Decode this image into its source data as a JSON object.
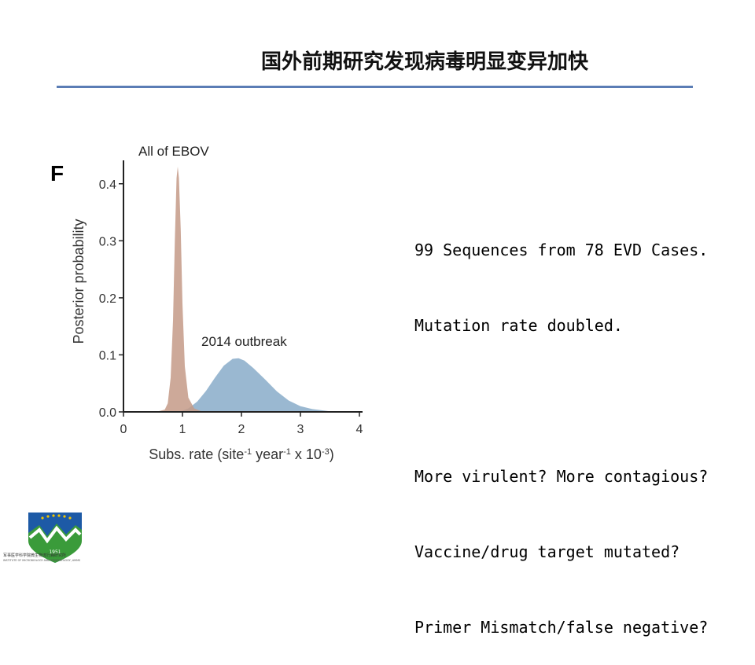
{
  "slide": {
    "title": "国外前期研究发现病毒明显变异加快"
  },
  "notes": {
    "lines": [
      "99 Sequences from 78 EVD Cases.",
      "Mutation rate doubled.",
      "",
      "More virulent? More contagious?",
      "Vaccine/drug target mutated?",
      "Primer Mismatch/false negative?"
    ]
  },
  "logo": {
    "name": "军事医学科学院微生物流行病研究所",
    "subname": "INSTITUTE OF MICROBIOLOGY AND EPIDEMIOLOGY, AMMS",
    "year": "1951"
  },
  "chart_data": {
    "type": "area",
    "panel_label": "F",
    "xlabel": "Subs. rate (site-1 year-1 x 10-3)",
    "ylabel": "Posterior probability",
    "xlim": [
      0,
      4
    ],
    "ylim": [
      0,
      0.43
    ],
    "x_ticks": [
      0,
      1,
      2,
      3,
      4
    ],
    "y_ticks": [
      0.0,
      0.1,
      0.2,
      0.3,
      0.4
    ],
    "y_tick_labels": [
      "0.0",
      "0.1",
      "0.2",
      "0.3",
      "0.4"
    ],
    "series": [
      {
        "name": "All of EBOV",
        "color": "#c49a87",
        "points": [
          [
            0.55,
            0.0
          ],
          [
            0.7,
            0.004
          ],
          [
            0.75,
            0.015
          ],
          [
            0.8,
            0.06
          ],
          [
            0.84,
            0.16
          ],
          [
            0.87,
            0.3
          ],
          [
            0.9,
            0.41
          ],
          [
            0.92,
            0.43
          ],
          [
            0.94,
            0.41
          ],
          [
            0.97,
            0.32
          ],
          [
            1.0,
            0.19
          ],
          [
            1.04,
            0.08
          ],
          [
            1.1,
            0.025
          ],
          [
            1.2,
            0.006
          ],
          [
            1.35,
            0.0
          ]
        ]
      },
      {
        "name": "2014 outbreak",
        "color": "#8fb0cc",
        "points": [
          [
            0.95,
            0.0
          ],
          [
            1.1,
            0.006
          ],
          [
            1.25,
            0.018
          ],
          [
            1.4,
            0.037
          ],
          [
            1.55,
            0.06
          ],
          [
            1.7,
            0.081
          ],
          [
            1.85,
            0.093
          ],
          [
            1.95,
            0.094
          ],
          [
            2.05,
            0.09
          ],
          [
            2.2,
            0.077
          ],
          [
            2.4,
            0.057
          ],
          [
            2.6,
            0.036
          ],
          [
            2.8,
            0.02
          ],
          [
            3.0,
            0.01
          ],
          [
            3.2,
            0.005
          ],
          [
            3.5,
            0.001
          ],
          [
            3.6,
            0.0
          ]
        ]
      }
    ],
    "annotations": [
      {
        "text": "All of EBOV",
        "near_series": 0
      },
      {
        "text": "2014 outbreak",
        "near_series": 1
      }
    ]
  }
}
